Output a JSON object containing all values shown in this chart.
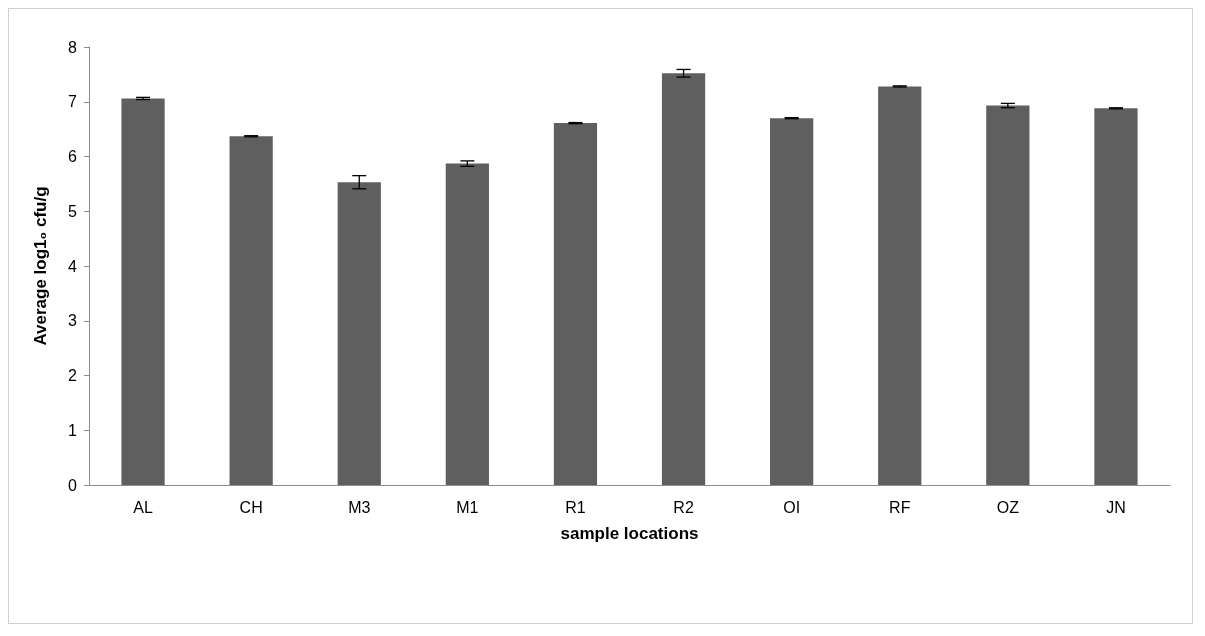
{
  "chart_data": {
    "type": "bar",
    "xlabel": "sample locations",
    "ylabel": "Average log1₀ cfu/g",
    "categories": [
      "AL",
      "CH",
      "M3",
      "M1",
      "R1",
      "R2",
      "OI",
      "RF",
      "OZ",
      "JN"
    ],
    "values": [
      7.06,
      6.37,
      5.53,
      5.87,
      6.61,
      7.52,
      6.7,
      7.28,
      6.93,
      6.88
    ],
    "errors": [
      0.02,
      0.01,
      0.12,
      0.05,
      0.01,
      0.07,
      0.01,
      0.01,
      0.04,
      0.01
    ],
    "color": "#5f5f5f",
    "ylim": [
      0,
      8
    ],
    "yticks": [
      0,
      1,
      2,
      3,
      4,
      5,
      6,
      7,
      8
    ]
  }
}
